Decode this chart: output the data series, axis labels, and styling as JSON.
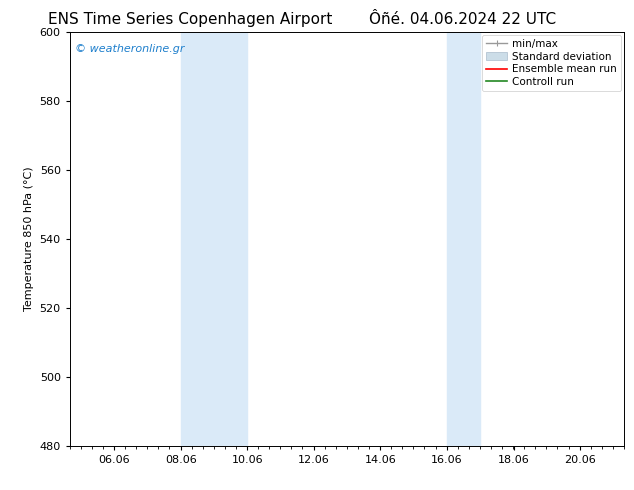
{
  "title_left": "ENS Time Series Copenhagen Airport",
  "title_right": "Ôñé. 04.06.2024 22 UTC",
  "ylabel": "Temperature 850 hPa (°C)",
  "ylim": [
    480,
    600
  ],
  "yticks": [
    480,
    500,
    520,
    540,
    560,
    580,
    600
  ],
  "xtick_labels": [
    "06.06",
    "08.06",
    "10.06",
    "12.06",
    "14.06",
    "16.06",
    "18.06",
    "20.06"
  ],
  "xtick_positions": [
    1.333,
    3.333,
    5.333,
    7.333,
    9.333,
    11.333,
    13.333,
    15.333
  ],
  "xlim": [
    0.0,
    16.667
  ],
  "shaded_bands": [
    {
      "x_start": 3.333,
      "x_end": 5.333,
      "color": "#daeaf8"
    },
    {
      "x_start": 11.333,
      "x_end": 12.333,
      "color": "#daeaf8"
    }
  ],
  "watermark_text": "© weatheronline.gr",
  "watermark_color": "#1e7fcc",
  "bg_color": "#ffffff",
  "plot_bg_color": "#ffffff",
  "legend_items": [
    {
      "label": "min/max",
      "color": "#aaaaaa"
    },
    {
      "label": "Standard deviation",
      "color": "#ccdde8"
    },
    {
      "label": "Ensemble mean run",
      "color": "#ff0000"
    },
    {
      "label": "Controll run",
      "color": "#008000"
    }
  ],
  "title_fontsize": 11,
  "tick_fontsize": 8,
  "ylabel_fontsize": 8,
  "watermark_fontsize": 8,
  "legend_fontsize": 7.5
}
